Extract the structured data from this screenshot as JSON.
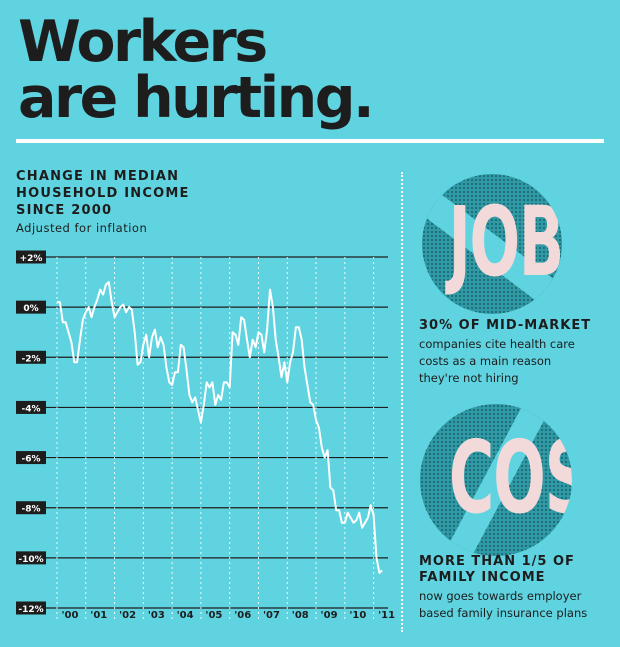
{
  "title_line1": "Workers",
  "title_line2": "are hurting.",
  "chart_data": {
    "type": "line",
    "title_lines": [
      "CHANGE IN MEDIAN",
      "HOUSEHOLD INCOME",
      "SINCE 2000"
    ],
    "subtitle": "Adjusted for inflation",
    "xlabel": "",
    "ylabel": "",
    "ylim": [
      -12,
      2
    ],
    "xlim": [
      2000,
      2011.5
    ],
    "y_ticks": [
      2,
      0,
      -2,
      -4,
      -6,
      -8,
      -10,
      -12
    ],
    "y_tick_labels": [
      "+2%",
      "0%",
      "-2%",
      "-4%",
      "-6%",
      "-8%",
      "-10%",
      "-12%"
    ],
    "x_ticks": [
      2000,
      2001,
      2002,
      2003,
      2004,
      2005,
      2006,
      2007,
      2008,
      2009,
      2010,
      2011
    ],
    "x_tick_labels": [
      "'00",
      "'01",
      "'02",
      "'03",
      "'04",
      "'05",
      "'06",
      "'07",
      "'08",
      "'09",
      "'10",
      "'11"
    ],
    "grid": true,
    "line_color": "#ffffff",
    "x": [
      2000.0,
      2000.1,
      2000.2,
      2000.3,
      2000.4,
      2000.5,
      2000.6,
      2000.7,
      2000.8,
      2000.9,
      2001.0,
      2001.1,
      2001.2,
      2001.3,
      2001.4,
      2001.5,
      2001.6,
      2001.7,
      2001.8,
      2001.9,
      2002.0,
      2002.1,
      2002.2,
      2002.3,
      2002.4,
      2002.5,
      2002.6,
      2002.7,
      2002.8,
      2002.9,
      2003.0,
      2003.1,
      2003.2,
      2003.3,
      2003.4,
      2003.5,
      2003.6,
      2003.7,
      2003.8,
      2003.9,
      2004.0,
      2004.1,
      2004.2,
      2004.3,
      2004.4,
      2004.5,
      2004.6,
      2004.7,
      2004.8,
      2004.9,
      2005.0,
      2005.1,
      2005.2,
      2005.3,
      2005.4,
      2005.5,
      2005.6,
      2005.7,
      2005.8,
      2005.9,
      2006.0,
      2006.1,
      2006.2,
      2006.3,
      2006.4,
      2006.5,
      2006.6,
      2006.7,
      2006.8,
      2006.9,
      2007.0,
      2007.1,
      2007.2,
      2007.3,
      2007.4,
      2007.5,
      2007.6,
      2007.7,
      2007.8,
      2007.9,
      2008.0,
      2008.1,
      2008.2,
      2008.3,
      2008.4,
      2008.5,
      2008.6,
      2008.7,
      2008.8,
      2008.9,
      2009.0,
      2009.1,
      2009.2,
      2009.3,
      2009.4,
      2009.5,
      2009.6,
      2009.7,
      2009.8,
      2009.9,
      2010.0,
      2010.1,
      2010.2,
      2010.3,
      2010.4,
      2010.5,
      2010.6,
      2010.7,
      2010.8,
      2010.9,
      2011.0,
      2011.1,
      2011.2,
      2011.3
    ],
    "values": [
      0.2,
      0.2,
      -0.6,
      -0.6,
      -1.0,
      -1.4,
      -2.2,
      -2.2,
      -1.3,
      -0.5,
      -0.2,
      0.0,
      -0.4,
      0.0,
      0.3,
      0.7,
      0.5,
      0.9,
      1.0,
      0.2,
      -0.4,
      -0.2,
      0.0,
      0.1,
      -0.2,
      0.0,
      -0.1,
      -1.0,
      -2.3,
      -2.2,
      -1.5,
      -1.1,
      -2.0,
      -1.2,
      -0.9,
      -1.6,
      -1.2,
      -1.5,
      -2.4,
      -3.0,
      -3.1,
      -2.6,
      -2.6,
      -1.5,
      -1.6,
      -2.5,
      -3.5,
      -3.8,
      -3.6,
      -4.1,
      -4.6,
      -3.9,
      -3.0,
      -3.2,
      -3.0,
      -3.9,
      -3.5,
      -3.7,
      -3.0,
      -3.0,
      -3.2,
      -1.0,
      -1.1,
      -1.5,
      -0.4,
      -0.5,
      -1.3,
      -2.0,
      -1.3,
      -1.6,
      -1.0,
      -1.1,
      -1.8,
      -0.9,
      0.7,
      0.0,
      -1.3,
      -2.0,
      -2.8,
      -2.2,
      -3.0,
      -2.2,
      -1.8,
      -0.8,
      -0.8,
      -1.3,
      -2.4,
      -3.1,
      -3.8,
      -3.9,
      -4.5,
      -4.8,
      -5.6,
      -6.0,
      -5.7,
      -7.2,
      -7.3,
      -8.1,
      -8.1,
      -8.6,
      -8.6,
      -8.2,
      -8.4,
      -8.6,
      -8.5,
      -8.2,
      -8.8,
      -8.6,
      -8.4,
      -7.9,
      -8.3,
      -10.0,
      -10.6,
      -10.5
    ]
  },
  "badges": [
    {
      "word": "JOBS",
      "headline": "30% OF MID-MARKET",
      "body": [
        "companies cite health care",
        "costs as a main reason",
        "they're not hiring"
      ]
    },
    {
      "word": "COST",
      "headline_lines": [
        "MORE THAN 1/5 OF",
        "FAMILY INCOME"
      ],
      "body": [
        "now goes towards employer",
        "based family insurance plans"
      ]
    }
  ],
  "colors": {
    "background": "#5fd3e0",
    "text": "#1d1d1d",
    "badge": "#2f9aa6",
    "badge_word": "#f3dada",
    "label_box": "#1d1d1d"
  }
}
